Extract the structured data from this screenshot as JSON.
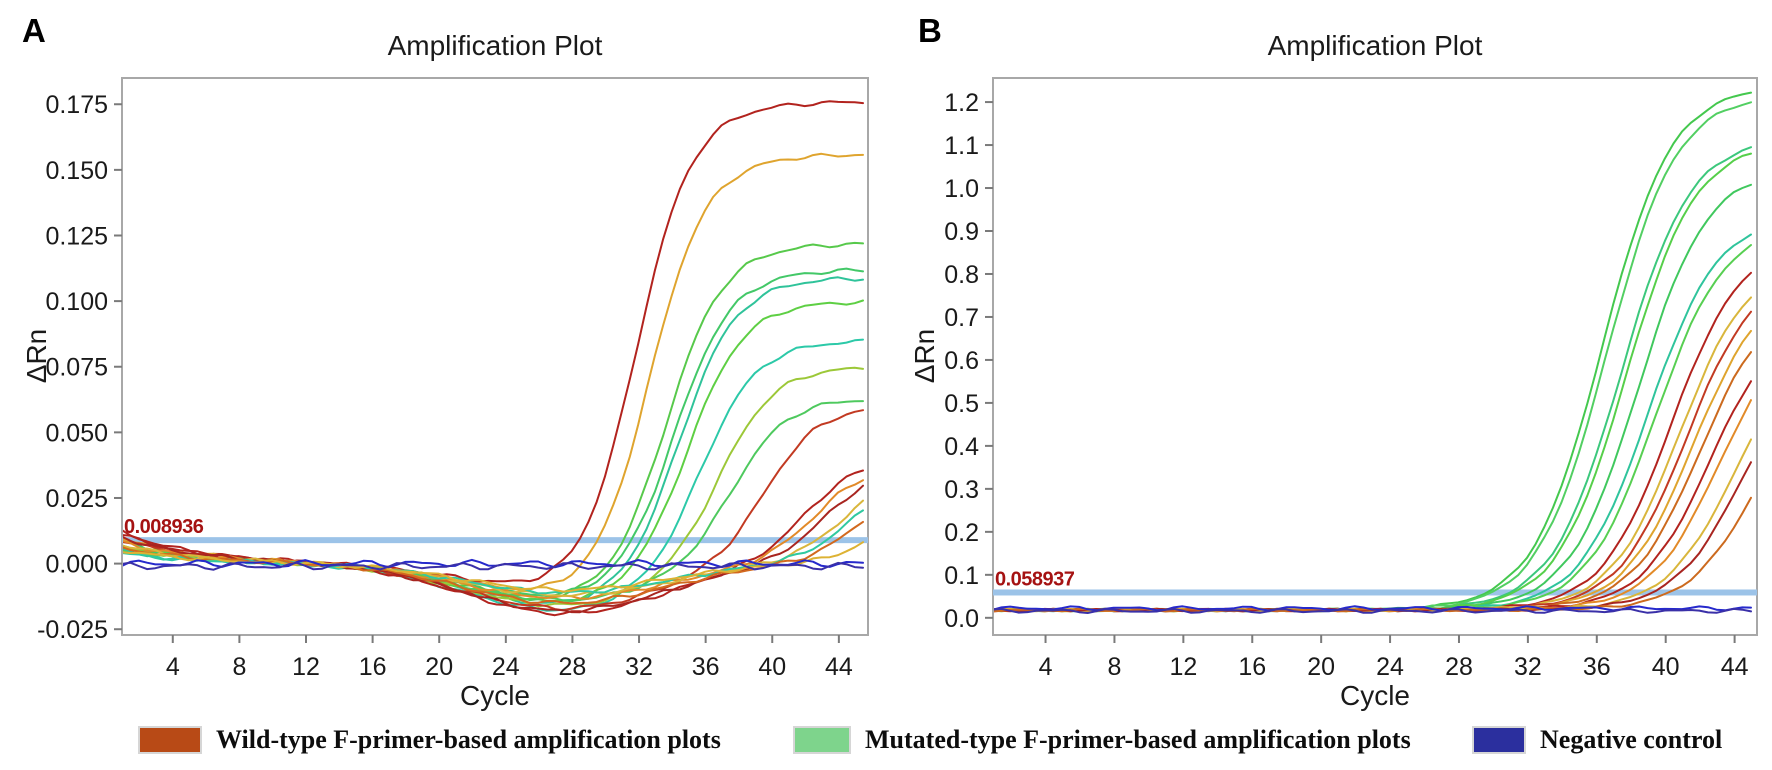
{
  "figure": {
    "legend": [
      {
        "label": "Wild-type F-primer-based amplification plots",
        "color": "#b84a16"
      },
      {
        "label": "Mutated-type F-primer-based amplification plots",
        "color": "#7ed48c"
      },
      {
        "label": "Negative control",
        "color": "#2b2f9e"
      }
    ]
  },
  "chart_data": [
    {
      "type": "line",
      "panel": "A",
      "title": "Amplification Plot",
      "xlabel": "Cycle",
      "ylabel": "ΔRn",
      "xlim": [
        0.95,
        45.75
      ],
      "ylim": [
        -0.0272,
        0.185
      ],
      "xticks": [
        4,
        8,
        12,
        16,
        20,
        24,
        28,
        32,
        36,
        40,
        44
      ],
      "yticks": [
        -0.025,
        0.0,
        0.025,
        0.05,
        0.075,
        0.1,
        0.125,
        0.15,
        0.175
      ],
      "ytick_labels": [
        "-0.025",
        "0.000",
        "0.025",
        "0.050",
        "0.075",
        "0.100",
        "0.125",
        "0.150",
        "0.175"
      ],
      "grid": false,
      "threshold": 0.008936,
      "threshold_label": "0.008936",
      "threshold_color": "#9cc3e8",
      "model": {
        "k": 0.62,
        "mid_offset": 4.0,
        "decay_tau": 4.5,
        "dip_center": 27.5,
        "dip_width": 8.5,
        "base": 0,
        "noise": 0.0011
      },
      "series": [
        {
          "group": "wild-type",
          "color": "#b2231e",
          "ct": 27.8,
          "plateau": 0.176,
          "start": 0.012,
          "dip": 0.01
        },
        {
          "group": "wild-type",
          "color": "#dfa42e",
          "ct": 28.6,
          "plateau": 0.156,
          "start": 0.01,
          "dip": 0.012
        },
        {
          "group": "mutated",
          "color": "#57c94b",
          "ct": 29.6,
          "plateau": 0.122,
          "start": 0.006,
          "dip": 0.014
        },
        {
          "group": "mutated",
          "color": "#43c868",
          "ct": 30.1,
          "plateau": 0.112,
          "start": 0.008,
          "dip": 0.013
        },
        {
          "group": "mutated",
          "color": "#2fc39a",
          "ct": 30.4,
          "plateau": 0.109,
          "start": 0.005,
          "dip": 0.016
        },
        {
          "group": "mutated",
          "color": "#5ecf44",
          "ct": 30.9,
          "plateau": 0.1,
          "start": 0.007,
          "dip": 0.015
        },
        {
          "group": "mutated",
          "color": "#2cc9a8",
          "ct": 31.7,
          "plateau": 0.085,
          "start": 0.004,
          "dip": 0.018
        },
        {
          "group": "mutated",
          "color": "#9cc838",
          "ct": 32.8,
          "plateau": 0.075,
          "start": 0.006,
          "dip": 0.016
        },
        {
          "group": "mutated",
          "color": "#4ec95e",
          "ct": 33.6,
          "plateau": 0.063,
          "start": 0.005,
          "dip": 0.014
        },
        {
          "group": "wild-type",
          "color": "#c23a22",
          "ct": 35.6,
          "plateau": 0.06,
          "start": 0.009,
          "dip": 0.017
        },
        {
          "group": "wild-type",
          "color": "#b2231e",
          "ct": 38.0,
          "plateau": 0.04,
          "start": 0.011,
          "dip": 0.019
        },
        {
          "group": "wild-type",
          "color": "#e28a28",
          "ct": 38.6,
          "plateau": 0.038,
          "start": 0.008,
          "dip": 0.013
        },
        {
          "group": "wild-type",
          "color": "#a82520",
          "ct": 39.2,
          "plateau": 0.037,
          "start": 0.01,
          "dip": 0.018
        },
        {
          "group": "wild-type",
          "color": "#d9b63c",
          "ct": 40.2,
          "plateau": 0.034,
          "start": 0.007,
          "dip": 0.012
        },
        {
          "group": "mutated",
          "color": "#30c9a0",
          "ct": 40.8,
          "plateau": 0.034,
          "start": 0.004,
          "dip": 0.011
        },
        {
          "group": "wild-type",
          "color": "#d2691e",
          "ct": 41.5,
          "plateau": 0.034,
          "start": 0.006,
          "dip": 0.015
        },
        {
          "group": "wild-type",
          "color": "#ddb233",
          "ct": 43.2,
          "plateau": 0.033,
          "start": 0.005,
          "dip": 0.01
        },
        {
          "group": "negative",
          "color": "#2629cc",
          "flat": 0.0
        },
        {
          "group": "negative",
          "color": "#3a30a8",
          "flat": -0.001
        }
      ]
    },
    {
      "type": "line",
      "panel": "B",
      "title": "Amplification Plot",
      "xlabel": "Cycle",
      "ylabel": "ΔRn",
      "xlim": [
        0.95,
        45.3
      ],
      "ylim": [
        -0.04,
        1.256
      ],
      "xticks": [
        4,
        8,
        12,
        16,
        20,
        24,
        28,
        32,
        36,
        40,
        44
      ],
      "yticks": [
        0.0,
        0.1,
        0.2,
        0.3,
        0.4,
        0.5,
        0.6,
        0.7,
        0.8,
        0.9,
        1.0,
        1.1,
        1.2
      ],
      "ytick_labels": [
        "0.0",
        "0.1",
        "0.2",
        "0.3",
        "0.4",
        "0.5",
        "0.6",
        "0.7",
        "0.8",
        "0.9",
        "1.0",
        "1.1",
        "1.2"
      ],
      "grid": false,
      "threshold": 0.058937,
      "threshold_label": "0.058937",
      "threshold_color": "#9cc3e8",
      "model": {
        "k": 0.5,
        "mid_offset": 6.5,
        "decay_tau": 4.0,
        "dip_center": 0,
        "dip_width": 1,
        "base": 0.018,
        "noise": 0.004
      },
      "series": [
        {
          "group": "mutated",
          "color": "#44c84e",
          "ct": 29.8,
          "plateau": 1.22
        },
        {
          "group": "mutated",
          "color": "#52cf62",
          "ct": 30.1,
          "plateau": 1.2
        },
        {
          "group": "mutated",
          "color": "#3cc87c",
          "ct": 30.9,
          "plateau": 1.1
        },
        {
          "group": "mutated",
          "color": "#56cf4a",
          "ct": 31.2,
          "plateau": 1.09
        },
        {
          "group": "mutated",
          "color": "#40c85e",
          "ct": 31.9,
          "plateau": 1.03
        },
        {
          "group": "mutated",
          "color": "#2fc49c",
          "ct": 32.5,
          "plateau": 0.92
        },
        {
          "group": "mutated",
          "color": "#57cf52",
          "ct": 32.9,
          "plateau": 0.9
        },
        {
          "group": "wild-type",
          "color": "#b2231e",
          "ct": 33.8,
          "plateau": 0.86
        },
        {
          "group": "wild-type",
          "color": "#d9b63c",
          "ct": 34.3,
          "plateau": 0.82
        },
        {
          "group": "wild-type",
          "color": "#c23a22",
          "ct": 34.7,
          "plateau": 0.8
        },
        {
          "group": "wild-type",
          "color": "#dfa42e",
          "ct": 35.1,
          "plateau": 0.77
        },
        {
          "group": "wild-type",
          "color": "#cc6a1e",
          "ct": 35.5,
          "plateau": 0.74
        },
        {
          "group": "wild-type",
          "color": "#b2231e",
          "ct": 36.1,
          "plateau": 0.7
        },
        {
          "group": "wild-type",
          "color": "#e28a28",
          "ct": 36.6,
          "plateau": 0.68
        },
        {
          "group": "wild-type",
          "color": "#d9b63c",
          "ct": 37.5,
          "plateau": 0.64
        },
        {
          "group": "wild-type",
          "color": "#a82520",
          "ct": 38.0,
          "plateau": 0.62
        },
        {
          "group": "wild-type",
          "color": "#cc6a1e",
          "ct": 38.9,
          "plateau": 0.59
        },
        {
          "group": "negative",
          "color": "#2629cc",
          "flat": 0.022
        },
        {
          "group": "negative",
          "color": "#3a30a8",
          "flat": 0.016
        }
      ]
    }
  ]
}
